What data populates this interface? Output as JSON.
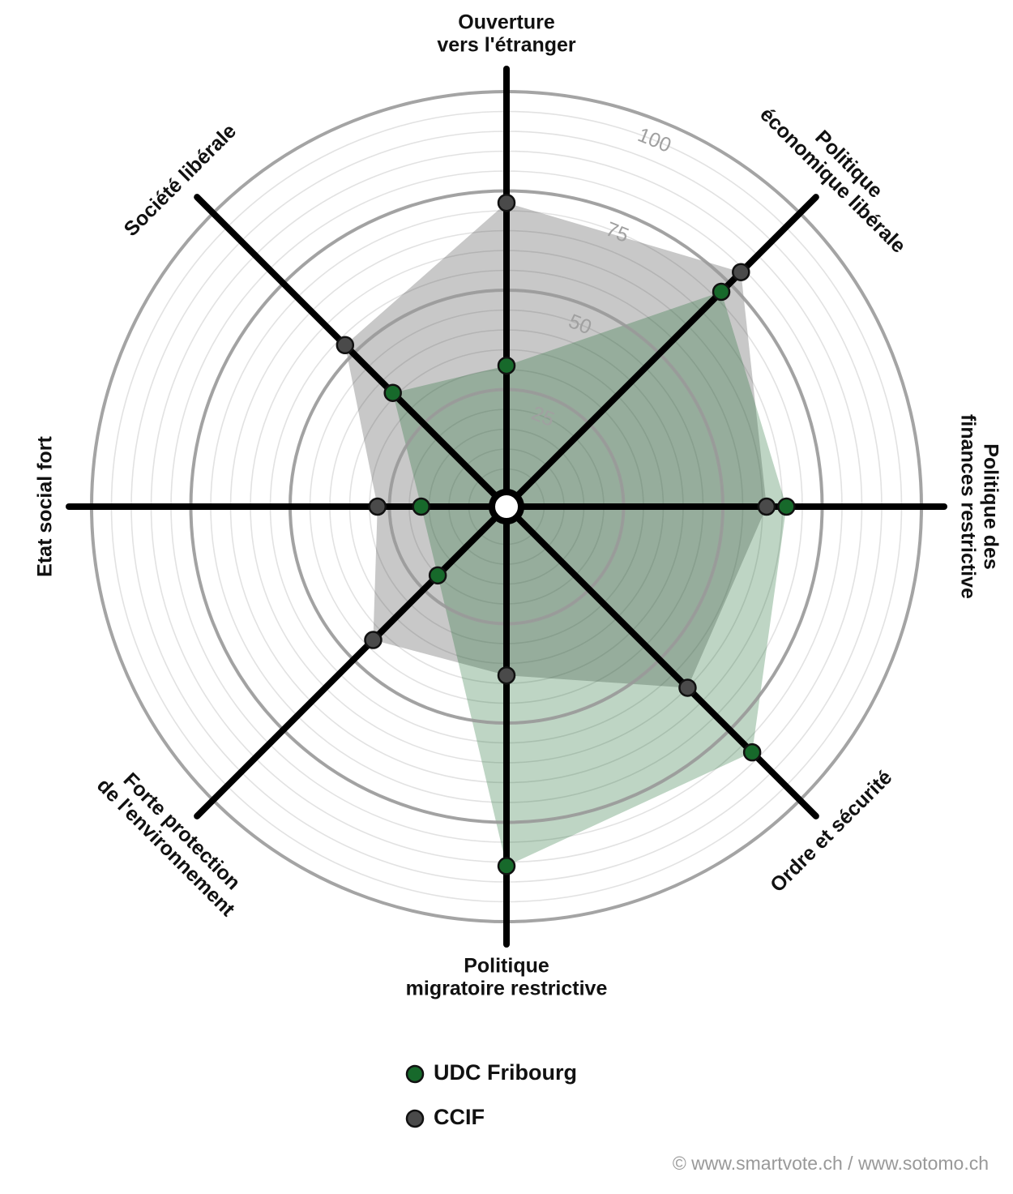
{
  "chart_data": {
    "type": "radar",
    "categories": [
      [
        "Ouverture",
        "vers l'étranger"
      ],
      [
        "Politique",
        "économique libérale"
      ],
      [
        "Politique des",
        "finances restrictive"
      ],
      [
        "Ordre et sécurité"
      ],
      [
        "Politique",
        "migratoire restrictive"
      ],
      [
        "Forte protection",
        "de l'environnement"
      ],
      [
        "Etat social fort"
      ],
      [
        "Société libérale"
      ]
    ],
    "series": [
      {
        "name": "UDC Fribourg",
        "color": "#17692b",
        "values": [
          31,
          72,
          66,
          83,
          86,
          20,
          17,
          36
        ]
      },
      {
        "name": "CCIF",
        "color": "#4a4a4a",
        "values": [
          72,
          79,
          61,
          60,
          38,
          43,
          28,
          53
        ]
      }
    ],
    "rlim": [
      0,
      100
    ],
    "rticks": [
      25,
      50,
      75,
      100
    ],
    "source": "© www.smartvote.ch / www.sotomo.ch"
  }
}
